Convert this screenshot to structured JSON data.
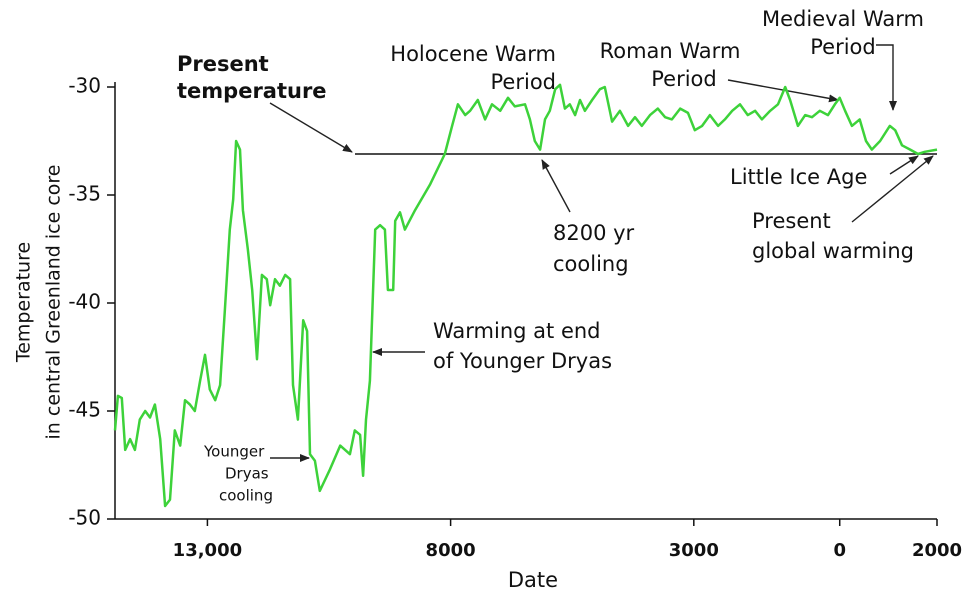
{
  "chart_data": {
    "type": "line",
    "x_label": "Date",
    "y_label": [
      "Temperature",
      "in central Greenland ice core"
    ],
    "xlim": [
      -14900,
      2000
    ],
    "ylim": [
      -50,
      -30
    ],
    "xticks": [
      {
        "value": -13000,
        "label": "13,000"
      },
      {
        "value": -8000,
        "label": "8000"
      },
      {
        "value": -3000,
        "label": "3000"
      },
      {
        "value": 0,
        "label": "0"
      },
      {
        "value": 2000,
        "label": "2000"
      }
    ],
    "yticks": [
      -30,
      -35,
      -40,
      -45,
      -50
    ],
    "present_temperature": -33.1,
    "x": [
      -14900,
      -14840,
      -14760,
      -14690,
      -14590,
      -14490,
      -14390,
      -14280,
      -14180,
      -14080,
      -13970,
      -13870,
      -13770,
      -13670,
      -13560,
      -13460,
      -13360,
      -13260,
      -13150,
      -13050,
      -12950,
      -12840,
      -12740,
      -12640,
      -12540,
      -12470,
      -12410,
      -12330,
      -12270,
      -12170,
      -12080,
      -11980,
      -11880,
      -11780,
      -11710,
      -11610,
      -11510,
      -11400,
      -11300,
      -11240,
      -11140,
      -11030,
      -10950,
      -10890,
      -10790,
      -10690,
      -10480,
      -10270,
      -10070,
      -9970,
      -9860,
      -9800,
      -9740,
      -9660,
      -9550,
      -9450,
      -9350,
      -9290,
      -9180,
      -9140,
      -9040,
      -8940,
      -8730,
      -8420,
      -8120,
      -7970,
      -7850,
      -7700,
      -7600,
      -7440,
      -7290,
      -7150,
      -6980,
      -6820,
      -6680,
      -6470,
      -6370,
      -6270,
      -6160,
      -6060,
      -5960,
      -5850,
      -5750,
      -5650,
      -5550,
      -5440,
      -5340,
      -5240,
      -5090,
      -4930,
      -4830,
      -4680,
      -4520,
      -4350,
      -4210,
      -4070,
      -3900,
      -3740,
      -3590,
      -3450,
      -3280,
      -3120,
      -2980,
      -2830,
      -2670,
      -2500,
      -2360,
      -2210,
      -2050,
      -1890,
      -1740,
      -1600,
      -1430,
      -1270,
      -1120,
      -1020,
      -860,
      -710,
      -570,
      -410,
      -240,
      -100,
      0,
      110,
      250,
      410,
      540,
      660,
      830,
      1030,
      1140,
      1280,
      1450,
      1610,
      1750,
      2000
    ],
    "series": [
      {
        "color": "#3dd23a",
        "values": [
          -45.9,
          -44.3,
          -44.4,
          -46.8,
          -46.3,
          -46.8,
          -45.4,
          -45.0,
          -45.3,
          -44.7,
          -46.3,
          -49.4,
          -49.1,
          -45.9,
          -46.6,
          -44.5,
          -44.7,
          -45.0,
          -43.6,
          -42.4,
          -44.0,
          -44.5,
          -43.8,
          -40.3,
          -36.6,
          -35.2,
          -32.5,
          -32.9,
          -35.7,
          -37.5,
          -39.4,
          -42.6,
          -38.7,
          -38.9,
          -40.1,
          -38.9,
          -39.2,
          -38.7,
          -38.9,
          -43.8,
          -45.4,
          -40.8,
          -41.3,
          -47.0,
          -47.3,
          -48.7,
          -47.7,
          -46.6,
          -47.0,
          -45.9,
          -46.1,
          -48.0,
          -45.4,
          -43.6,
          -36.6,
          -36.4,
          -36.6,
          -39.4,
          -39.4,
          -36.2,
          -35.8,
          -36.6,
          -35.7,
          -34.5,
          -33.1,
          -31.8,
          -30.8,
          -31.3,
          -31.1,
          -30.6,
          -31.5,
          -30.8,
          -31.1,
          -30.5,
          -30.9,
          -30.8,
          -31.5,
          -32.5,
          -32.9,
          -31.5,
          -31.1,
          -30.1,
          -29.9,
          -31.0,
          -30.8,
          -31.3,
          -30.6,
          -31.1,
          -30.6,
          -30.1,
          -30.0,
          -31.6,
          -31.1,
          -31.8,
          -31.4,
          -31.8,
          -31.3,
          -31.0,
          -31.4,
          -31.5,
          -31.0,
          -31.2,
          -32.0,
          -31.8,
          -31.3,
          -31.8,
          -31.5,
          -31.1,
          -30.8,
          -31.3,
          -31.1,
          -31.5,
          -31.1,
          -30.8,
          -30.0,
          -30.6,
          -31.8,
          -31.3,
          -31.4,
          -31.1,
          -31.3,
          -30.8,
          -30.5,
          -31.1,
          -31.8,
          -31.5,
          -32.5,
          -32.9,
          -32.5,
          -31.8,
          -32.0,
          -32.7,
          -32.9,
          -33.1,
          -33.0,
          -32.9
        ]
      }
    ],
    "annotations": [
      {
        "lines": [
          "Present",
          "temperature"
        ]
      },
      {
        "lines": [
          "Holocene Warm",
          "Period"
        ]
      },
      {
        "lines": [
          "Roman Warm",
          "Period"
        ]
      },
      {
        "lines": [
          "Medieval Warm",
          "Period"
        ]
      },
      {
        "lines": [
          "8200 yr",
          "cooling"
        ]
      },
      {
        "lines": [
          "Little Ice Age"
        ]
      },
      {
        "lines": [
          "Present",
          "global warming"
        ]
      },
      {
        "lines": [
          "Warming at end",
          "of Younger Dryas"
        ]
      },
      {
        "lines": [
          "Younger",
          "Dryas",
          "cooling"
        ]
      }
    ]
  }
}
